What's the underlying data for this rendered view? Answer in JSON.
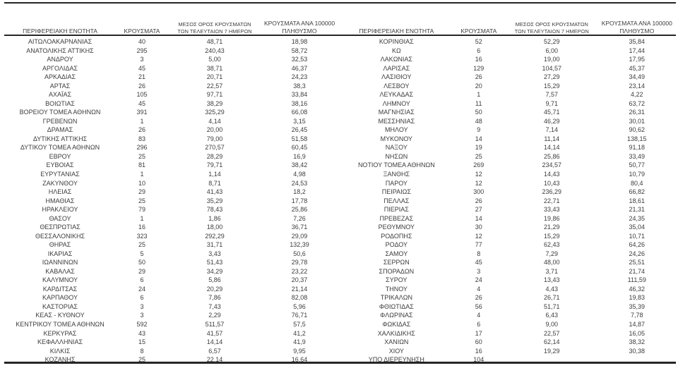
{
  "page": {
    "background_color": "#ffffff",
    "text_color": "#3c3c3c",
    "rule_color": "#262626"
  },
  "headers": {
    "region": "ΠΕΡΙΦΕΡΕΙΑΚΗ ΕΝΟΤΗΤΑ",
    "cases": "ΚΡΟΥΣΜΑΤΑ",
    "avg7": "ΜΕΣΟΣ ΟΡΟΣ ΚΡΟΥΣΜΑΤΩΝ\nΤΩΝ ΤΕΛΕΥΤΑΙΩΝ 7 ΗΜΕΡΩΝ",
    "per100k": "ΚΡΟΥΣΜΑΤΑ ΑΝΑ 100000\nΠΛΗΘΥΣΜΟ"
  },
  "tables": [
    {
      "rows": [
        [
          "ΑΙΤΩΛΟΑΚΑΡΝΑΝΙΑΣ",
          "40",
          "48,71",
          "18,98"
        ],
        [
          "ΑΝΑΤΟΛΙΚΗΣ ΑΤΤΙΚΗΣ",
          "295",
          "240,43",
          "58,72"
        ],
        [
          "ΑΝΔΡΟΥ",
          "3",
          "5,00",
          "32,53"
        ],
        [
          "ΑΡΓΟΛΙΔΑΣ",
          "45",
          "38,71",
          "46,37"
        ],
        [
          "ΑΡΚΑΔΙΑΣ",
          "21",
          "20,71",
          "24,23"
        ],
        [
          "ΑΡΤΑΣ",
          "26",
          "22,57",
          "38,3"
        ],
        [
          "ΑΧΑΪΑΣ",
          "105",
          "97,71",
          "33,84"
        ],
        [
          "ΒΟΙΩΤΙΑΣ",
          "45",
          "38,29",
          "38,16"
        ],
        [
          "ΒΟΡΕΙΟΥ ΤΟΜΕΑ ΑΘΗΝΩΝ",
          "391",
          "325,29",
          "66,08"
        ],
        [
          "ΓΡΕΒΕΝΩΝ",
          "1",
          "4,14",
          "3,15"
        ],
        [
          "ΔΡΑΜΑΣ",
          "26",
          "20,00",
          "26,45"
        ],
        [
          "ΔΥΤΙΚΗΣ ΑΤΤΙΚΗΣ",
          "83",
          "79,00",
          "51,58"
        ],
        [
          "ΔΥΤΙΚΟΥ ΤΟΜΕΑ ΑΘΗΝΩΝ",
          "296",
          "270,57",
          "60,45"
        ],
        [
          "ΕΒΡΟΥ",
          "25",
          "28,29",
          "16,9"
        ],
        [
          "ΕΥΒΟΙΑΣ",
          "81",
          "79,71",
          "38,42"
        ],
        [
          "ΕΥΡΥΤΑΝΙΑΣ",
          "1",
          "1,14",
          "4,98"
        ],
        [
          "ΖΑΚΥΝΘΟΥ",
          "10",
          "8,71",
          "24,53"
        ],
        [
          "ΗΛΕΙΑΣ",
          "29",
          "41,43",
          "18,2"
        ],
        [
          "ΗΜΑΘΙΑΣ",
          "25",
          "35,29",
          "17,78"
        ],
        [
          "ΗΡΑΚΛΕΙΟΥ",
          "79",
          "78,43",
          "25,86"
        ],
        [
          "ΘΑΣΟΥ",
          "1",
          "1,86",
          "7,26"
        ],
        [
          "ΘΕΣΠΡΩΤΙΑΣ",
          "16",
          "18,00",
          "36,71"
        ],
        [
          "ΘΕΣΣΑΛΟΝΙΚΗΣ",
          "323",
          "292,29",
          "29,09"
        ],
        [
          "ΘΗΡΑΣ",
          "25",
          "31,71",
          "132,39"
        ],
        [
          "ΙΚΑΡΙΑΣ",
          "5",
          "3,43",
          "50,6"
        ],
        [
          "ΙΩΑΝΝΙΝΩΝ",
          "50",
          "51,43",
          "29,78"
        ],
        [
          "ΚΑΒΑΛΑΣ",
          "29",
          "34,29",
          "23,22"
        ],
        [
          "ΚΑΛΥΜΝΟΥ",
          "6",
          "5,86",
          "20,37"
        ],
        [
          "ΚΑΡΔΙΤΣΑΣ",
          "24",
          "20,29",
          "21,14"
        ],
        [
          "ΚΑΡΠΑΘΟΥ",
          "6",
          "7,86",
          "82,08"
        ],
        [
          "ΚΑΣΤΟΡΙΑΣ",
          "3",
          "7,43",
          "5,96"
        ],
        [
          "ΚΕΑΣ - ΚΥΘΝΟΥ",
          "3",
          "2,29",
          "76,71"
        ],
        [
          "ΚΕΝΤΡΙΚΟΥ ΤΟΜΕΑ ΑΘΗΝΩΝ",
          "592",
          "511,57",
          "57,5"
        ],
        [
          "ΚΕΡΚΥΡΑΣ",
          "43",
          "41,57",
          "41,2"
        ],
        [
          "ΚΕΦΑΛΛΗΝΙΑΣ",
          "15",
          "14,14",
          "41,9"
        ],
        [
          "ΚΙΛΚΙΣ",
          "8",
          "6,57",
          "9,95"
        ],
        [
          "ΚΟΖΑΝΗΣ",
          "25",
          "22,14",
          "16,64"
        ]
      ]
    },
    {
      "rows": [
        [
          "ΚΟΡΙΝΘΙΑΣ",
          "52",
          "52,29",
          "35,84"
        ],
        [
          "ΚΩ",
          "6",
          "6,00",
          "17,44"
        ],
        [
          "ΛΑΚΩΝΙΑΣ",
          "16",
          "19,00",
          "17,95"
        ],
        [
          "ΛΑΡΙΣΑΣ",
          "129",
          "104,57",
          "45,37"
        ],
        [
          "ΛΑΣΙΘΙΟΥ",
          "26",
          "27,29",
          "34,49"
        ],
        [
          "ΛΕΣΒΟΥ",
          "20",
          "15,29",
          "23,14"
        ],
        [
          "ΛΕΥΚΑΔΑΣ",
          "1",
          "7,57",
          "4,22"
        ],
        [
          "ΛΗΜΝΟΥ",
          "11",
          "9,71",
          "63,72"
        ],
        [
          "ΜΑΓΝΗΣΙΑΣ",
          "50",
          "45,71",
          "26,31"
        ],
        [
          "ΜΕΣΣΗΝΙΑΣ",
          "48",
          "46,29",
          "30,01"
        ],
        [
          "ΜΗΛΟΥ",
          "9",
          "7,14",
          "90,62"
        ],
        [
          "ΜΥΚΟΝΟΥ",
          "14",
          "11,14",
          "138,15"
        ],
        [
          "ΝΑΞΟΥ",
          "19",
          "14,14",
          "91,18"
        ],
        [
          "ΝΗΣΩΝ",
          "25",
          "25,86",
          "33,49"
        ],
        [
          "ΝΟΤΙΟΥ ΤΟΜΕΑ ΑΘΗΝΩΝ",
          "269",
          "234,57",
          "50,77"
        ],
        [
          "ΞΑΝΘΗΣ",
          "12",
          "14,43",
          "10,79"
        ],
        [
          "ΠΑΡΟΥ",
          "12",
          "10,43",
          "80,4"
        ],
        [
          "ΠΕΙΡΑΙΩΣ",
          "300",
          "236,29",
          "66,82"
        ],
        [
          "ΠΕΛΛΑΣ",
          "26",
          "22,71",
          "18,61"
        ],
        [
          "ΠΙΕΡΙΑΣ",
          "27",
          "33,43",
          "21,31"
        ],
        [
          "ΠΡΕΒΕΖΑΣ",
          "14",
          "19,86",
          "24,35"
        ],
        [
          "ΡΕΘΥΜΝΟΥ",
          "30",
          "21,29",
          "35,04"
        ],
        [
          "ΡΟΔΟΠΗΣ",
          "12",
          "15,29",
          "10,71"
        ],
        [
          "ΡΟΔΟΥ",
          "77",
          "62,43",
          "64,26"
        ],
        [
          "ΣΑΜΟΥ",
          "8",
          "7,29",
          "24,26"
        ],
        [
          "ΣΕΡΡΩΝ",
          "45",
          "48,00",
          "25,51"
        ],
        [
          "ΣΠΟΡΑΔΩΝ",
          "3",
          "3,71",
          "21,74"
        ],
        [
          "ΣΥΡΟΥ",
          "24",
          "13,43",
          "111,59"
        ],
        [
          "ΤΗΝΟΥ",
          "4",
          "4,43",
          "46,32"
        ],
        [
          "ΤΡΙΚΑΛΩΝ",
          "26",
          "26,71",
          "19,83"
        ],
        [
          "ΦΘΙΩΤΙΔΑΣ",
          "56",
          "51,71",
          "35,39"
        ],
        [
          "ΦΛΩΡΙΝΑΣ",
          "4",
          "6,43",
          "7,78"
        ],
        [
          "ΦΩΚΙΔΑΣ",
          "6",
          "9,00",
          "14,87"
        ],
        [
          "ΧΑΛΚΙΔΙΚΗΣ",
          "17",
          "22,57",
          "16,05"
        ],
        [
          "ΧΑΝΙΩΝ",
          "60",
          "62,14",
          "38,32"
        ],
        [
          "ΧΙΟΥ",
          "16",
          "19,29",
          "30,38"
        ],
        [
          "ΥΠΟ ΔΙΕΡΕΥΝΗΣΗ",
          "104",
          "",
          ""
        ]
      ]
    }
  ]
}
